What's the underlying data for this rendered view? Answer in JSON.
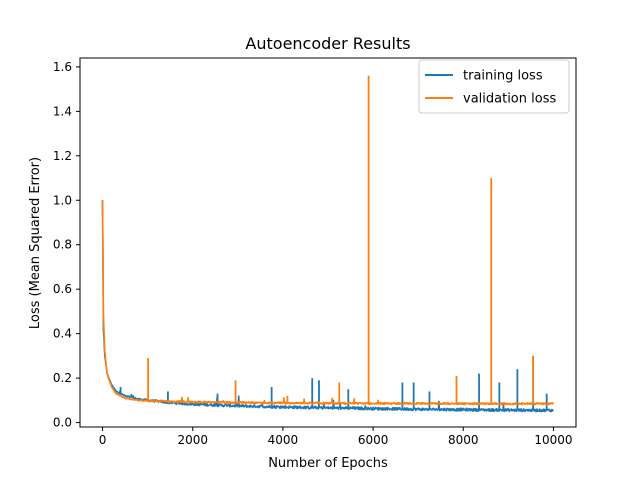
{
  "chart_data": {
    "type": "line",
    "title": "Autoencoder Results",
    "xlabel": "Number of Epochs",
    "ylabel": "Loss (Mean Squared Error)",
    "xlim": [
      -500,
      10500
    ],
    "ylim": [
      -0.02,
      1.64
    ],
    "xticks": [
      0,
      2000,
      4000,
      6000,
      8000,
      10000
    ],
    "xtick_labels": [
      "0",
      "2000",
      "4000",
      "6000",
      "8000",
      "10000"
    ],
    "yticks": [
      0.0,
      0.2,
      0.4,
      0.6,
      0.8,
      1.0,
      1.2,
      1.4,
      1.6
    ],
    "ytick_labels": [
      "0.0",
      "0.2",
      "0.4",
      "0.6",
      "0.8",
      "1.0",
      "1.2",
      "1.4",
      "1.6"
    ],
    "grid": false,
    "legend_position": "upper right",
    "series": [
      {
        "name": "training loss",
        "color": "#1f77b4",
        "x": [
          0,
          20,
          50,
          100,
          200,
          300,
          500,
          800,
          1000,
          1500,
          2000,
          3000,
          4000,
          5000,
          6000,
          7000,
          8000,
          9000,
          10000
        ],
        "values": [
          1.0,
          0.42,
          0.3,
          0.22,
          0.17,
          0.14,
          0.12,
          0.105,
          0.1,
          0.09,
          0.083,
          0.075,
          0.07,
          0.066,
          0.063,
          0.06,
          0.058,
          0.056,
          0.055
        ],
        "spikes": [
          {
            "x": 400,
            "y": 0.16
          },
          {
            "x": 1450,
            "y": 0.14
          },
          {
            "x": 2550,
            "y": 0.13
          },
          {
            "x": 3750,
            "y": 0.16
          },
          {
            "x": 4650,
            "y": 0.2
          },
          {
            "x": 4800,
            "y": 0.19
          },
          {
            "x": 5450,
            "y": 0.15
          },
          {
            "x": 6650,
            "y": 0.18
          },
          {
            "x": 6900,
            "y": 0.18
          },
          {
            "x": 7250,
            "y": 0.14
          },
          {
            "x": 8350,
            "y": 0.22
          },
          {
            "x": 8800,
            "y": 0.18
          },
          {
            "x": 9200,
            "y": 0.24
          },
          {
            "x": 9550,
            "y": 0.3
          },
          {
            "x": 9850,
            "y": 0.13
          }
        ]
      },
      {
        "name": "validation loss",
        "color": "#ff7f0e",
        "x": [
          0,
          20,
          50,
          100,
          200,
          300,
          500,
          800,
          1000,
          1500,
          2000,
          3000,
          4000,
          5000,
          6000,
          7000,
          8000,
          9000,
          10000
        ],
        "values": [
          1.0,
          0.48,
          0.32,
          0.22,
          0.16,
          0.13,
          0.11,
          0.1,
          0.098,
          0.095,
          0.093,
          0.09,
          0.088,
          0.087,
          0.086,
          0.086,
          0.085,
          0.085,
          0.085
        ],
        "spikes": [
          {
            "x": 1010,
            "y": 0.29
          },
          {
            "x": 2950,
            "y": 0.19
          },
          {
            "x": 4100,
            "y": 0.12
          },
          {
            "x": 5250,
            "y": 0.18
          },
          {
            "x": 5900,
            "y": 1.56
          },
          {
            "x": 7850,
            "y": 0.21
          },
          {
            "x": 8620,
            "y": 1.1
          },
          {
            "x": 9550,
            "y": 0.3
          }
        ]
      }
    ]
  }
}
